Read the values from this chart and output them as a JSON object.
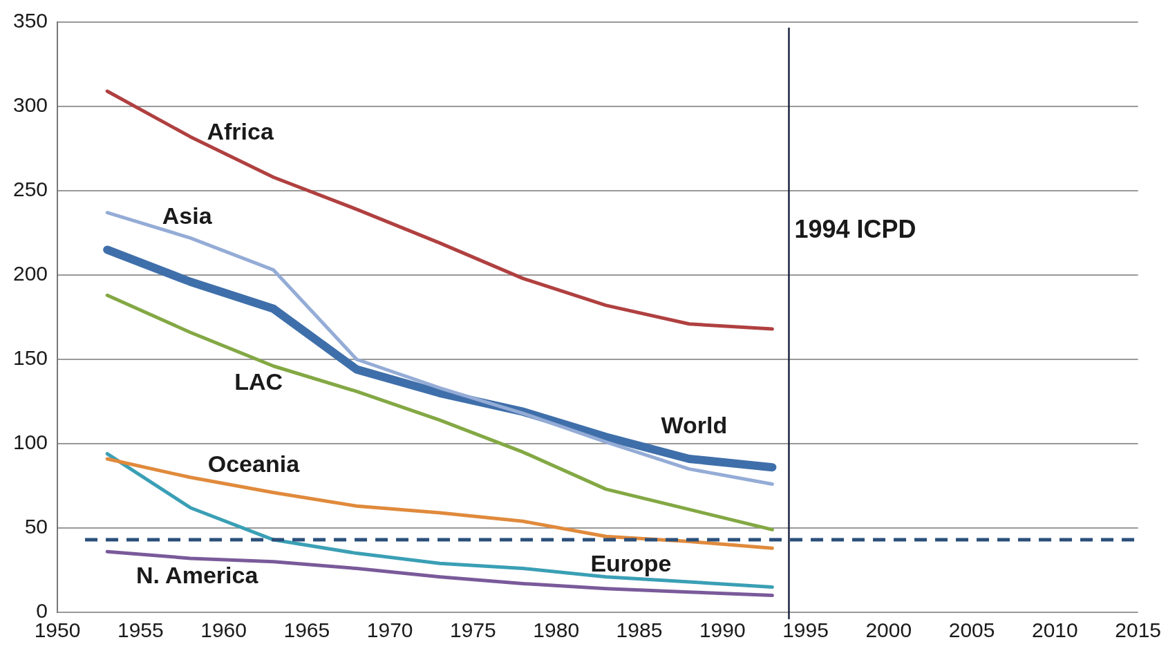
{
  "chart_data": {
    "type": "line",
    "x": [
      1953,
      1958,
      1963,
      1968,
      1973,
      1978,
      1983,
      1988,
      1993
    ],
    "series": [
      {
        "name": "Africa",
        "color": "#b04040",
        "values": [
          309,
          282,
          258,
          239,
          219,
          198,
          182,
          171,
          168
        ]
      },
      {
        "name": "Asia",
        "color": "#94acd6",
        "values": [
          237,
          222,
          203,
          150,
          133,
          118,
          101,
          85,
          76
        ]
      },
      {
        "name": "World",
        "color": "#3f6faa",
        "values": [
          215,
          196,
          180,
          144,
          130,
          119,
          104,
          91,
          86
        ]
      },
      {
        "name": "LAC",
        "color": "#83a844",
        "values": [
          188,
          166,
          146,
          131,
          114,
          95,
          73,
          61,
          49
        ]
      },
      {
        "name": "Oceania",
        "color": "#e08a3c",
        "values": [
          91,
          80,
          71,
          63,
          59,
          54,
          45,
          42,
          38
        ]
      },
      {
        "name": "Europe",
        "color": "#3a9fb5",
        "values": [
          94,
          62,
          43,
          35,
          29,
          26,
          21,
          18,
          15
        ]
      },
      {
        "name": "N. America",
        "color": "#7a5a9a",
        "values": [
          36,
          32,
          30,
          26,
          21,
          17,
          14,
          12,
          10
        ]
      }
    ],
    "xlim": [
      1950,
      2015
    ],
    "xticks": [
      1950,
      1955,
      1960,
      1965,
      1970,
      1975,
      1980,
      1985,
      1990,
      1995,
      2000,
      2005,
      2010,
      2015
    ],
    "ylim": [
      0,
      350
    ],
    "yticks": [
      0,
      50,
      100,
      150,
      200,
      250,
      300,
      350
    ],
    "ref_lines": [
      {
        "axis": "y",
        "value": 43,
        "color": "#2b4f7a",
        "line_style": "dashed"
      },
      {
        "axis": "x",
        "value": 1994,
        "label": "1994 ICPD",
        "color": "#1a2540",
        "line_style": "solid"
      }
    ],
    "grid": "y",
    "legend": false,
    "marker": "none",
    "line_style": "solid"
  }
}
